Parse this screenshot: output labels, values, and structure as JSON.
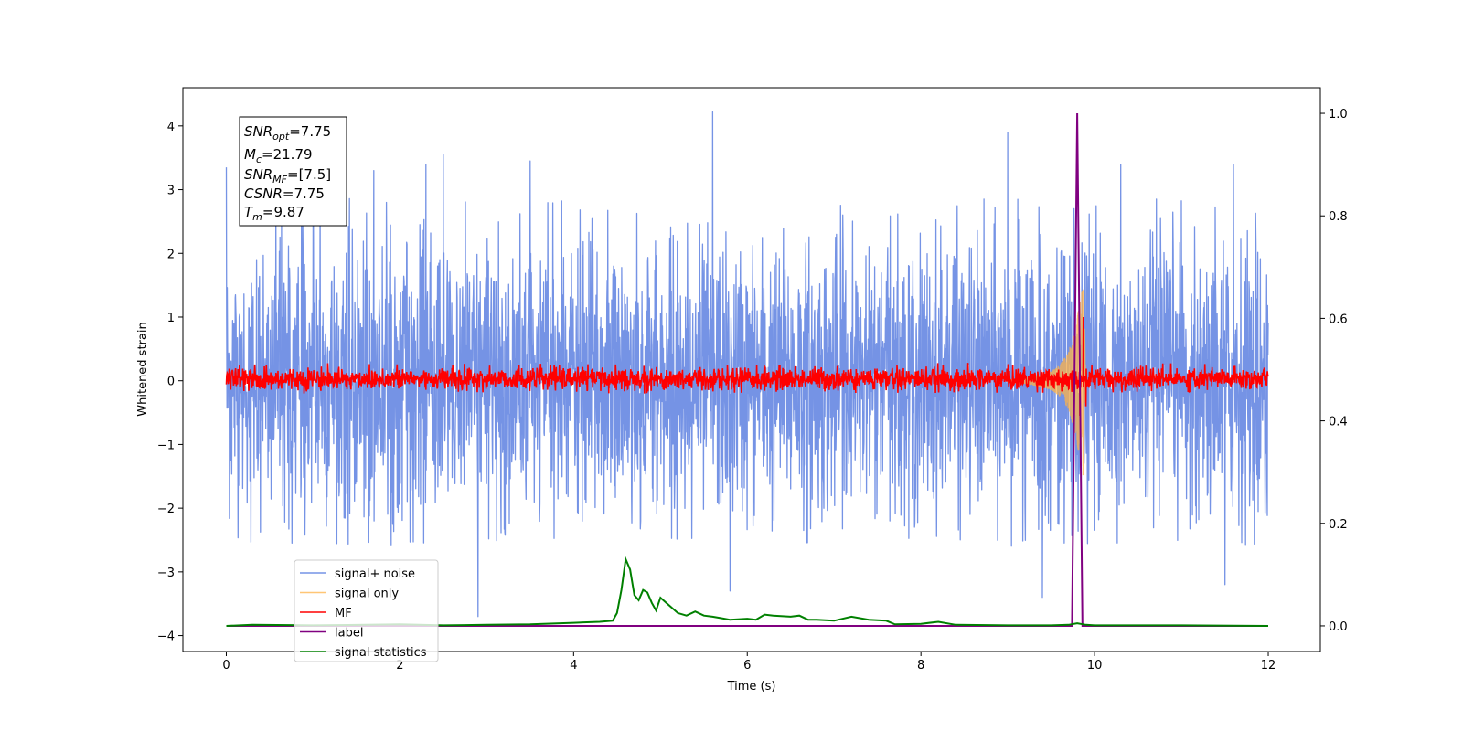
{
  "chart_data": {
    "type": "line",
    "xlabel": "Time (s)",
    "ylabel": "Whitened strain",
    "xlim": [
      -0.5,
      12.6
    ],
    "ylim": [
      -4.25,
      4.6
    ],
    "y2lim": [
      -0.05,
      1.05
    ],
    "xticks": [
      0,
      2,
      4,
      6,
      8,
      10,
      12
    ],
    "yticks": [
      4,
      3,
      2,
      1,
      0,
      -1,
      -2,
      -3,
      -4
    ],
    "y2ticks": [
      1.0,
      0.8,
      0.6,
      0.4,
      0.2,
      0.0
    ],
    "grid": false,
    "legend_placement": "lower-left",
    "info_box": {
      "snr_opt": "7.75",
      "mc": "21.79",
      "snr_mf": "[7.5]",
      "csnr": "7.75",
      "tm": "9.87"
    },
    "series": [
      {
        "name": "signal+ noise",
        "color": "#7593e5",
        "axis": "left",
        "description": "whitened noisy strain, roughly between -3.5 and 4.2",
        "x_range": [
          0,
          12
        ],
        "envelope_upper": 2.9,
        "envelope_lower": -2.6,
        "peaks": [
          [
            0.0,
            3.35
          ],
          [
            1.0,
            3.2
          ],
          [
            1.7,
            3.3
          ],
          [
            2.3,
            3.4
          ],
          [
            2.5,
            3.55
          ],
          [
            3.5,
            3.45
          ],
          [
            5.6,
            4.22
          ],
          [
            9.0,
            3.9
          ],
          [
            10.3,
            3.4
          ],
          [
            11.6,
            3.4
          ],
          [
            2.9,
            -3.7
          ],
          [
            5.8,
            -3.3
          ],
          [
            9.4,
            -3.4
          ],
          [
            11.5,
            -3.2
          ]
        ]
      },
      {
        "name": "signal only",
        "color": "#ffb347",
        "axis": "left",
        "description": "chirp signal ending at merger",
        "x": [
          9.0,
          9.2,
          9.4,
          9.5,
          9.6,
          9.7,
          9.75,
          9.8,
          9.84,
          9.87,
          9.9
        ],
        "amplitude": [
          0.02,
          0.05,
          0.1,
          0.15,
          0.25,
          0.45,
          0.7,
          1.0,
          1.3,
          1.5,
          0.0
        ]
      },
      {
        "name": "MF",
        "color": "#ff0000",
        "axis": "left",
        "description": "matched-filter output, noise around 0 with spike at merger",
        "x_range": [
          0,
          12
        ],
        "envelope_upper": 0.28,
        "envelope_lower": -0.2,
        "spike": [
          [
            9.83,
            -0.55
          ],
          [
            9.87,
            1.0
          ],
          [
            9.9,
            -0.4
          ]
        ]
      },
      {
        "name": "label",
        "color": "#800080",
        "axis": "right",
        "x": [
          0,
          9.74,
          9.8,
          9.86,
          12
        ],
        "values": [
          0,
          0,
          1.0,
          0,
          0
        ]
      },
      {
        "name": "signal statistics",
        "color": "#008000",
        "axis": "right",
        "x": [
          0,
          0.3,
          1.0,
          2.0,
          2.5,
          3.0,
          3.5,
          4.0,
          4.3,
          4.45,
          4.5,
          4.55,
          4.6,
          4.65,
          4.7,
          4.75,
          4.8,
          4.85,
          4.9,
          4.95,
          5.0,
          5.1,
          5.2,
          5.3,
          5.4,
          5.5,
          5.6,
          5.7,
          5.8,
          6.0,
          6.1,
          6.2,
          6.3,
          6.5,
          6.6,
          6.7,
          6.8,
          7.0,
          7.2,
          7.4,
          7.6,
          7.7,
          8.0,
          8.2,
          8.4,
          9.0,
          9.5,
          9.7,
          9.8,
          9.9,
          10.0,
          11.0,
          12.0
        ],
        "values": [
          0.0,
          0.002,
          0.001,
          0.003,
          0.001,
          0.002,
          0.003,
          0.006,
          0.008,
          0.01,
          0.025,
          0.07,
          0.13,
          0.11,
          0.06,
          0.05,
          0.07,
          0.065,
          0.045,
          0.03,
          0.055,
          0.04,
          0.025,
          0.02,
          0.028,
          0.02,
          0.018,
          0.015,
          0.012,
          0.014,
          0.012,
          0.022,
          0.02,
          0.018,
          0.02,
          0.012,
          0.012,
          0.01,
          0.018,
          0.012,
          0.01,
          0.003,
          0.004,
          0.008,
          0.002,
          0.001,
          0.001,
          0.002,
          0.005,
          0.002,
          0.001,
          0.001,
          0.0
        ]
      }
    ]
  }
}
